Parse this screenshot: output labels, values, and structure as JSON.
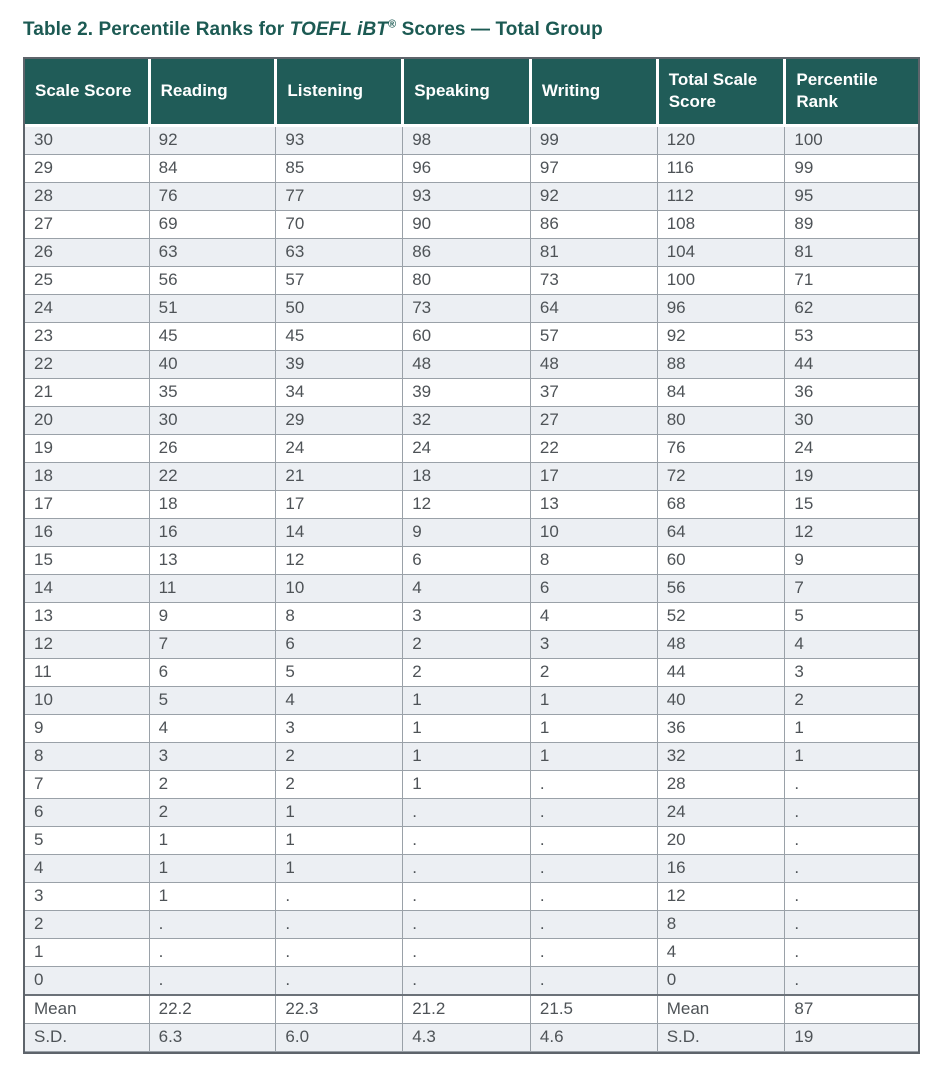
{
  "title": {
    "text_before_italic": "Table 2. Percentile Ranks for ",
    "italic_text": "TOEFL iBT",
    "registered_mark": "®",
    "text_after_italic": " Scores — Total Group"
  },
  "table": {
    "headers": [
      "Scale Score",
      "Reading",
      "Listening",
      "Speaking",
      "Writing",
      "Total Scale Score",
      "Percentile Rank"
    ],
    "rows": [
      [
        "30",
        "92",
        "93",
        "98",
        "99",
        "120",
        "100"
      ],
      [
        "29",
        "84",
        "85",
        "96",
        "97",
        "116",
        "99"
      ],
      [
        "28",
        "76",
        "77",
        "93",
        "92",
        "112",
        "95"
      ],
      [
        "27",
        "69",
        "70",
        "90",
        "86",
        "108",
        "89"
      ],
      [
        "26",
        "63",
        "63",
        "86",
        "81",
        "104",
        "81"
      ],
      [
        "25",
        "56",
        "57",
        "80",
        "73",
        "100",
        "71"
      ],
      [
        "24",
        "51",
        "50",
        "73",
        "64",
        "96",
        "62"
      ],
      [
        "23",
        "45",
        "45",
        "60",
        "57",
        "92",
        "53"
      ],
      [
        "22",
        "40",
        "39",
        "48",
        "48",
        "88",
        "44"
      ],
      [
        "21",
        "35",
        "34",
        "39",
        "37",
        "84",
        "36"
      ],
      [
        "20",
        "30",
        "29",
        "32",
        "27",
        "80",
        "30"
      ],
      [
        "19",
        "26",
        "24",
        "24",
        "22",
        "76",
        "24"
      ],
      [
        "18",
        "22",
        "21",
        "18",
        "17",
        "72",
        "19"
      ],
      [
        "17",
        "18",
        "17",
        "12",
        "13",
        "68",
        "15"
      ],
      [
        "16",
        "16",
        "14",
        "9",
        "10",
        "64",
        "12"
      ],
      [
        "15",
        "13",
        "12",
        "6",
        "8",
        "60",
        "9"
      ],
      [
        "14",
        "11",
        "10",
        "4",
        "6",
        "56",
        "7"
      ],
      [
        "13",
        "9",
        "8",
        "3",
        "4",
        "52",
        "5"
      ],
      [
        "12",
        "7",
        "6",
        "2",
        "3",
        "48",
        "4"
      ],
      [
        "11",
        "6",
        "5",
        "2",
        "2",
        "44",
        "3"
      ],
      [
        "10",
        "5",
        "4",
        "1",
        "1",
        "40",
        "2"
      ],
      [
        "9",
        "4",
        "3",
        "1",
        "1",
        "36",
        "1"
      ],
      [
        "8",
        "3",
        "2",
        "1",
        "1",
        "32",
        "1"
      ],
      [
        "7",
        "2",
        "2",
        "1",
        ".",
        "28",
        "."
      ],
      [
        "6",
        "2",
        "1",
        ".",
        ".",
        "24",
        "."
      ],
      [
        "5",
        "1",
        "1",
        ".",
        ".",
        "20",
        "."
      ],
      [
        "4",
        "1",
        "1",
        ".",
        ".",
        "16",
        "."
      ],
      [
        "3",
        "1",
        ".",
        ".",
        ".",
        "12",
        "."
      ],
      [
        "2",
        ".",
        ".",
        ".",
        ".",
        "8",
        "."
      ],
      [
        "1",
        ".",
        ".",
        ".",
        ".",
        "4",
        "."
      ],
      [
        "0",
        ".",
        ".",
        ".",
        ".",
        "0",
        "."
      ],
      [
        "Mean",
        "22.2",
        "22.3",
        "21.2",
        "21.5",
        "Mean",
        "87"
      ],
      [
        "S.D.",
        "6.3",
        "6.0",
        "4.3",
        "4.6",
        "S.D.",
        "19"
      ]
    ],
    "summary_rule_row_index": 31,
    "column_width_percents": [
      13.9,
      14.2,
      14.2,
      14.3,
      14.2,
      14.3,
      14.9
    ]
  },
  "colors": {
    "header_bg": "#205C58",
    "title": "#1C5A53",
    "row_shade": "#ECEFF3",
    "cell_text": "#4E5357",
    "outer_border": "#5E646B",
    "row_border": "#9AA1A8"
  }
}
